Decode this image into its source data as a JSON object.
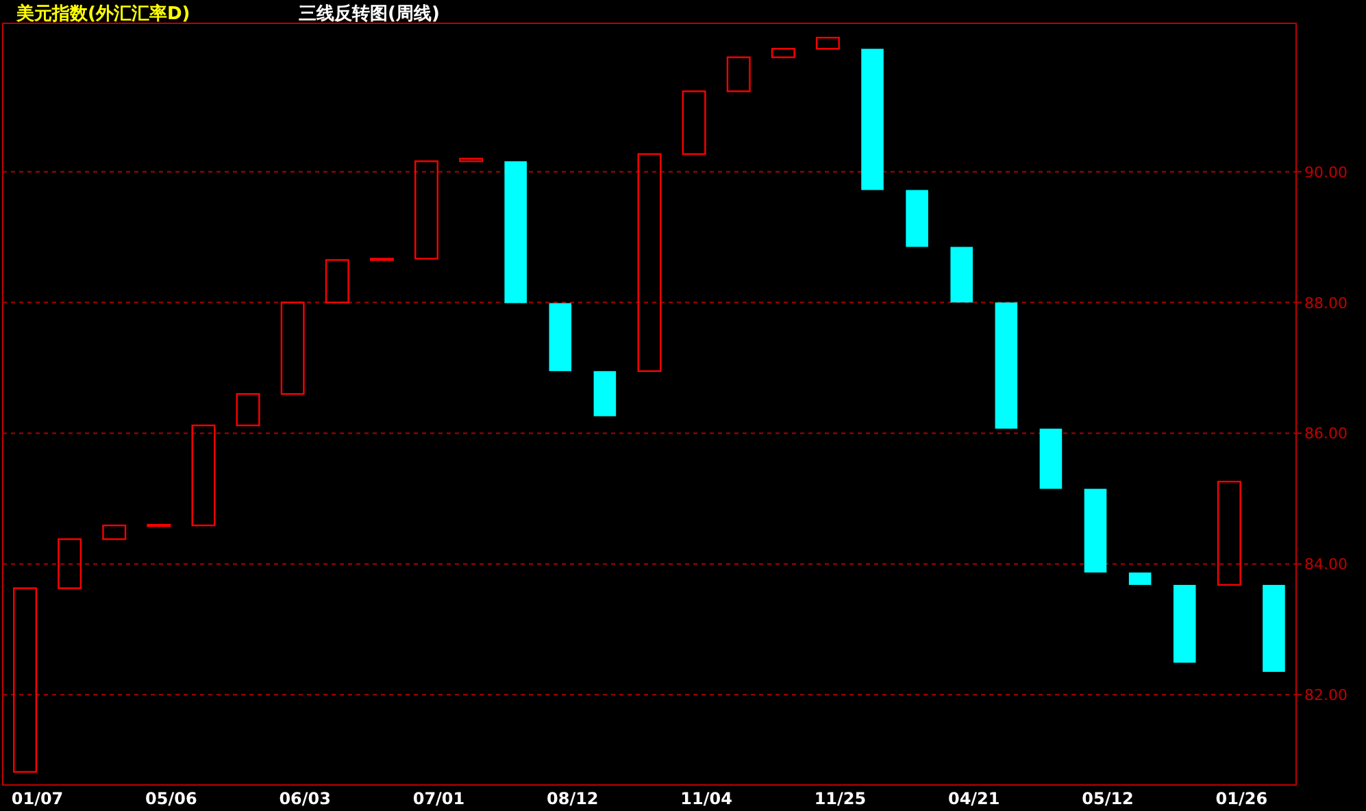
{
  "chart_data": {
    "type": "bar",
    "title": "美元指数(外汇汇率D)",
    "subtitle": "三线反转图(周线)",
    "categories": [
      "01/07",
      null,
      null,
      "05/06",
      null,
      null,
      "06/03",
      null,
      null,
      "07/01",
      null,
      null,
      "08/12",
      null,
      null,
      "11/04",
      null,
      null,
      "11/25",
      null,
      null,
      "04/21",
      null,
      null,
      "05/12",
      null,
      null,
      "01/26",
      null
    ],
    "base": [
      80.82,
      83.63,
      84.38,
      84.59,
      84.59,
      86.12,
      86.6,
      88.0,
      88.65,
      88.67,
      90.16,
      90.16,
      87.99,
      86.95,
      86.95,
      90.27,
      91.23,
      91.75,
      91.88,
      91.88,
      89.72,
      88.85,
      88.0,
      86.07,
      85.15,
      83.87,
      83.68,
      83.68,
      83.68
    ],
    "values": [
      2.81,
      0.75,
      0.21,
      0.01,
      1.53,
      0.48,
      1.4,
      0.65,
      0.02,
      1.49,
      0.04,
      -2.17,
      -1.04,
      -0.69,
      3.32,
      0.96,
      0.52,
      0.13,
      0.17,
      -2.16,
      -0.87,
      -0.85,
      -1.93,
      -0.92,
      -1.28,
      -0.19,
      -1.19,
      1.58,
      -1.33
    ],
    "colors": [
      "#ff0000",
      "#ff0000",
      "#ff0000",
      "#ff0000",
      "#ff0000",
      "#ff0000",
      "#ff0000",
      "#ff0000",
      "#ff0000",
      "#ff0000",
      "#ff0000",
      "#00ffff",
      "#00ffff",
      "#00ffff",
      "#ff0000",
      "#ff0000",
      "#ff0000",
      "#ff0000",
      "#ff0000",
      "#00ffff",
      "#00ffff",
      "#00ffff",
      "#00ffff",
      "#00ffff",
      "#00ffff",
      "#00ffff",
      "#00ffff",
      "#ff0000",
      "#00ffff"
    ],
    "ylim": [
      80.62,
      92.27
    ],
    "yticks": [
      {
        "value": 82,
        "label": "82.00"
      },
      {
        "value": 84,
        "label": "84.00"
      },
      {
        "value": 86,
        "label": "86.00"
      },
      {
        "value": 88,
        "label": "88.00"
      },
      {
        "value": 90,
        "label": "90.00"
      }
    ],
    "grid": "y"
  }
}
